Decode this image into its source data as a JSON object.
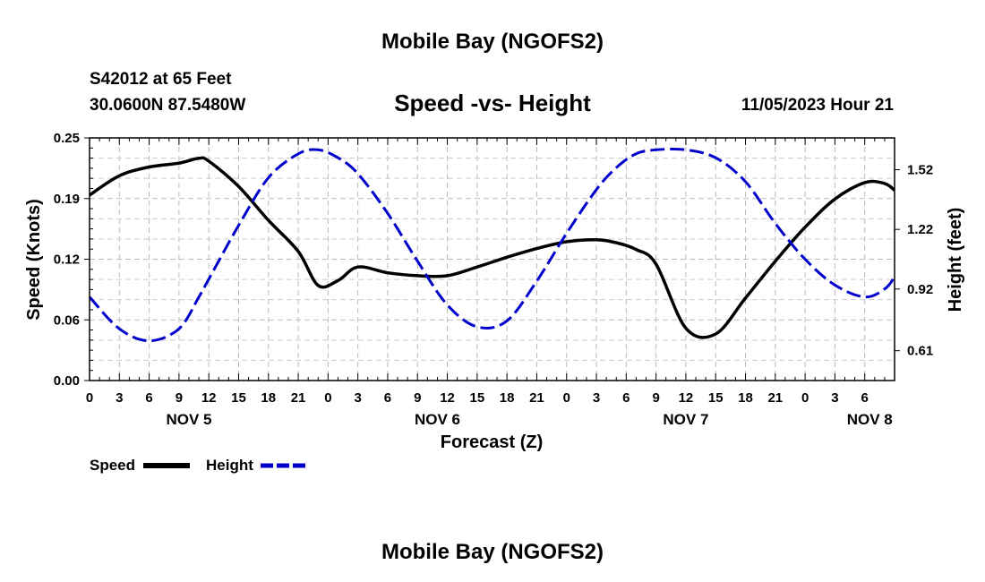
{
  "page": {
    "title": "Mobile Bay (NGOFS2)",
    "footer_title": "Mobile Bay (NGOFS2)"
  },
  "header": {
    "station": "S42012 at 65 Feet",
    "coords": "30.0600N  87.5480W",
    "date": "11/05/2023 Hour 21"
  },
  "chart_data": {
    "type": "line",
    "title": "Speed -vs- Height",
    "xlabel": "Forecast (Z)",
    "ylabel": "Speed (Knots)",
    "ylabel_right": "Height (feet)",
    "x_hours_range": [
      0,
      81
    ],
    "ylim": [
      0,
      0.25
    ],
    "ylim_right": [
      0.46,
      1.68
    ],
    "grid": true,
    "x_tick_labels": [
      "0",
      "3",
      "6",
      "9",
      "12",
      "15",
      "18",
      "21",
      "0",
      "3",
      "6",
      "9",
      "12",
      "15",
      "18",
      "21",
      "0",
      "3",
      "6",
      "9",
      "12",
      "15",
      "18",
      "21",
      "0",
      "3",
      "6"
    ],
    "y_tick_labels": [
      "0.00",
      "0.06",
      "0.12",
      "0.19",
      "0.25"
    ],
    "y_tick_values": [
      0.0,
      0.0625,
      0.125,
      0.1875,
      0.25
    ],
    "y_right_tick_labels": [
      "0.61",
      "0.92",
      "1.22",
      "1.52"
    ],
    "y_right_tick_values": [
      0.61,
      0.92,
      1.22,
      1.52
    ],
    "day_labels": [
      {
        "label": "NOV 5",
        "hour": 10
      },
      {
        "label": "NOV 6",
        "hour": 35
      },
      {
        "label": "NOV 7",
        "hour": 60
      },
      {
        "label": "NOV 8",
        "hour": 78.5
      }
    ],
    "x_hours": [
      0,
      3,
      6,
      9,
      11,
      12,
      15,
      18,
      21,
      23,
      25,
      27,
      30,
      33,
      36,
      39,
      42,
      45,
      48,
      51,
      53,
      55,
      57,
      60,
      63,
      66,
      69,
      72,
      75,
      78,
      80,
      81
    ],
    "series": [
      {
        "name": "Speed",
        "axis": "left",
        "color": "#000000",
        "style": "solid",
        "values": [
          0.191,
          0.211,
          0.22,
          0.224,
          0.229,
          0.226,
          0.2,
          0.165,
          0.133,
          0.098,
          0.103,
          0.117,
          0.111,
          0.108,
          0.108,
          0.117,
          0.127,
          0.136,
          0.143,
          0.145,
          0.142,
          0.135,
          0.12,
          0.054,
          0.048,
          0.085,
          0.123,
          0.158,
          0.187,
          0.204,
          0.203,
          0.196
        ]
      },
      {
        "name": "Height",
        "axis": "right",
        "color": "#0000cc",
        "style": "dashed",
        "values": [
          0.88,
          0.72,
          0.66,
          0.72,
          0.88,
          0.97,
          1.24,
          1.48,
          1.6,
          1.62,
          1.58,
          1.5,
          1.3,
          1.06,
          0.84,
          0.73,
          0.76,
          0.96,
          1.2,
          1.42,
          1.53,
          1.6,
          1.62,
          1.62,
          1.58,
          1.46,
          1.25,
          1.07,
          0.94,
          0.88,
          0.92,
          0.98
        ]
      }
    ],
    "legend": [
      {
        "label": "Speed",
        "color": "#000000",
        "style": "solid"
      },
      {
        "label": "Height",
        "color": "#0000cc",
        "style": "dashed"
      }
    ]
  }
}
